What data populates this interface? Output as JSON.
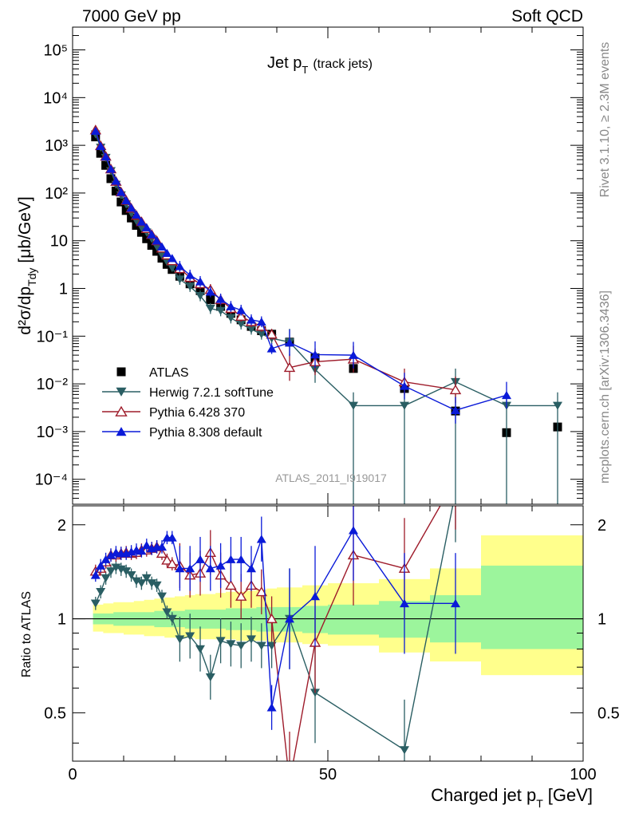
{
  "header": {
    "left": "7000 GeV pp",
    "right": "Soft QCD"
  },
  "side": {
    "rivet": "Rivet 3.1.10, ≥ 2.3M events",
    "mcplots": "mcplots.cern.ch [arXiv:1306.3436]"
  },
  "chart_data": [
    {
      "type": "scatter",
      "title_main": "Jet p",
      "title_sub": "T",
      "title_paren": "(track jets)",
      "analysis_label": "ATLAS_2011_I919017",
      "ylabel_main": "d²σ/dp",
      "ylabel_sub": "Tdy",
      "ylabel_units": "[μb/GeV]",
      "xlim": [
        0,
        100
      ],
      "ylim": [
        3e-05,
        300000
      ],
      "yscale": "log",
      "yticks": [
        "10⁻⁴",
        "10⁻³",
        "10⁻²",
        "10⁻¹",
        "1",
        "10",
        "10²",
        "10³",
        "10⁴",
        "10⁵"
      ],
      "ytick_values": [
        0.0001,
        0.001,
        0.01,
        0.1,
        1,
        10,
        100,
        1000,
        10000,
        100000
      ],
      "legend_placement": "bottom-left",
      "series": [
        {
          "name": "ATLAS",
          "color": "#000000",
          "marker": "square",
          "x": [
            4.5,
            5.5,
            6.5,
            7.5,
            8.5,
            9.5,
            10.5,
            11.5,
            12.5,
            13.5,
            14.5,
            15.5,
            16.5,
            17.5,
            18.5,
            19.5,
            21,
            23,
            25,
            27,
            29,
            31,
            33,
            35,
            37,
            39,
            42.5,
            47.5,
            55,
            65,
            75,
            85,
            95
          ],
          "y": [
            1500,
            680,
            380,
            200,
            110,
            65,
            43,
            30,
            21,
            15,
            11,
            8,
            6,
            4.3,
            3.2,
            2.5,
            1.8,
            1.25,
            0.9,
            0.58,
            0.42,
            0.3,
            0.22,
            0.16,
            0.13,
            0.11,
            0.075,
            0.035,
            0.021,
            0.008,
            0.0027,
            0.00095,
            0.00125
          ]
        },
        {
          "name": "Herwig 7.2.1 softTune",
          "color": "#2a5e63",
          "marker": "triangle-down",
          "x": [
            4.5,
            5.5,
            6.5,
            7.5,
            8.5,
            9.5,
            10.5,
            11.5,
            12.5,
            13.5,
            14.5,
            15.5,
            16.5,
            17.5,
            18.5,
            19.5,
            21,
            23,
            25,
            27,
            29,
            31,
            33,
            35,
            37,
            39,
            42.5,
            47.5,
            55,
            65,
            75,
            85,
            95
          ],
          "y": [
            1700,
            900,
            550,
            290,
            150,
            90,
            58,
            38,
            26,
            19,
            15,
            11,
            7.5,
            5,
            3.6,
            2.7,
            1.55,
            1.1,
            0.7,
            0.38,
            0.34,
            0.24,
            0.18,
            0.14,
            0.11,
            0.09,
            0.075,
            0.02,
            0.0035,
            0.0035,
            0.011,
            0.0035,
            0.0035
          ]
        },
        {
          "name": "Pythia 6.428 370",
          "color": "#9e1b2a",
          "marker": "triangle-up-open",
          "x": [
            4.5,
            5.5,
            6.5,
            7.5,
            8.5,
            9.5,
            10.5,
            11.5,
            12.5,
            13.5,
            14.5,
            15.5,
            16.5,
            17.5,
            18.5,
            19.5,
            21,
            23,
            25,
            27,
            29,
            31,
            33,
            35,
            37,
            39,
            42.5,
            47.5,
            55,
            65,
            75
          ],
          "y": [
            2100,
            980,
            590,
            320,
            175,
            105,
            70,
            48,
            34,
            25,
            18,
            13.5,
            10,
            7,
            5,
            3.8,
            2.6,
            1.7,
            1.25,
            0.95,
            0.58,
            0.38,
            0.26,
            0.2,
            0.16,
            0.11,
            0.022,
            0.029,
            0.033,
            0.011,
            0.0075
          ]
        },
        {
          "name": "Pythia 8.308 default",
          "color": "#0a1ad8",
          "marker": "triangle-up",
          "x": [
            4.5,
            5.5,
            6.5,
            7.5,
            8.5,
            9.5,
            10.5,
            11.5,
            12.5,
            13.5,
            14.5,
            15.5,
            16.5,
            17.5,
            18.5,
            19.5,
            21,
            23,
            25,
            27,
            29,
            31,
            33,
            35,
            37,
            39,
            42.5,
            47.5,
            55,
            65,
            75,
            85
          ],
          "y": [
            2000,
            960,
            580,
            320,
            180,
            105,
            70,
            49,
            35,
            25,
            19,
            13.5,
            10,
            7.5,
            5.5,
            4.3,
            2.9,
            1.9,
            1.4,
            0.85,
            0.6,
            0.42,
            0.35,
            0.22,
            0.2,
            0.055,
            0.073,
            0.041,
            0.04,
            0.009,
            0.0028,
            0.0058
          ]
        }
      ]
    },
    {
      "type": "line",
      "ylabel": "Ratio to ATLAS",
      "xlabel_main": "Charged jet p",
      "xlabel_sub": "T",
      "xlabel_units": "[GeV]",
      "xlim": [
        0,
        100
      ],
      "ylim": [
        0.35,
        2.3
      ],
      "xticks": [
        "0",
        "50",
        "100"
      ],
      "xtick_values": [
        0,
        50,
        100
      ],
      "yticks": [
        "0.5",
        "1",
        "2"
      ],
      "ytick_values": [
        0.5,
        1,
        2
      ],
      "bands": {
        "edges": [
          4,
          6,
          8,
          10,
          12,
          14,
          16,
          18,
          20,
          22,
          24,
          26,
          28,
          30,
          32,
          34,
          36,
          38,
          40,
          45,
          50,
          60,
          70,
          80,
          90,
          100
        ],
        "green_lo": [
          0.96,
          0.96,
          0.95,
          0.95,
          0.95,
          0.95,
          0.94,
          0.94,
          0.94,
          0.93,
          0.93,
          0.93,
          0.93,
          0.92,
          0.92,
          0.92,
          0.91,
          0.91,
          0.91,
          0.9,
          0.89,
          0.87,
          0.84,
          0.8,
          0.8
        ],
        "green_hi": [
          1.04,
          1.04,
          1.05,
          1.05,
          1.05,
          1.05,
          1.06,
          1.06,
          1.06,
          1.07,
          1.07,
          1.07,
          1.07,
          1.08,
          1.08,
          1.08,
          1.09,
          1.09,
          1.09,
          1.1,
          1.11,
          1.14,
          1.19,
          1.48,
          1.48
        ],
        "yellow_lo": [
          0.91,
          0.9,
          0.9,
          0.89,
          0.89,
          0.88,
          0.88,
          0.87,
          0.87,
          0.87,
          0.86,
          0.86,
          0.86,
          0.86,
          0.85,
          0.85,
          0.85,
          0.84,
          0.84,
          0.83,
          0.82,
          0.78,
          0.73,
          0.66,
          0.66
        ],
        "yellow_hi": [
          1.11,
          1.12,
          1.13,
          1.13,
          1.14,
          1.15,
          1.16,
          1.17,
          1.18,
          1.19,
          1.2,
          1.2,
          1.21,
          1.22,
          1.22,
          1.23,
          1.24,
          1.25,
          1.26,
          1.28,
          1.3,
          1.34,
          1.45,
          1.85,
          1.85
        ]
      },
      "series": [
        {
          "name": "Herwig 7.2.1 softTune",
          "color": "#2a5e63",
          "marker": "triangle-down",
          "x": [
            4.5,
            5.5,
            6.5,
            7.5,
            8.5,
            9.5,
            10.5,
            11.5,
            12.5,
            13.5,
            14.5,
            15.5,
            16.5,
            17.5,
            18.5,
            19.5,
            21,
            23,
            25,
            27,
            29,
            31,
            33,
            35,
            37,
            39,
            42.5,
            47.5,
            65,
            75
          ],
          "y": [
            1.12,
            1.22,
            1.35,
            1.42,
            1.46,
            1.44,
            1.42,
            1.38,
            1.32,
            1.3,
            1.35,
            1.3,
            1.28,
            1.18,
            1.05,
            1.0,
            0.86,
            0.88,
            0.8,
            0.65,
            0.85,
            0.83,
            0.82,
            0.86,
            0.82,
            0.82,
            1.0,
            0.58,
            0.38,
            2.55
          ]
        },
        {
          "name": "Pythia 6.428 370",
          "color": "#9e1b2a",
          "marker": "triangle-up-open",
          "x": [
            4.5,
            5.5,
            6.5,
            7.5,
            8.5,
            9.5,
            10.5,
            11.5,
            12.5,
            13.5,
            14.5,
            15.5,
            16.5,
            17.5,
            18.5,
            19.5,
            21,
            23,
            25,
            27,
            29,
            31,
            33,
            35,
            37,
            39,
            42.5,
            47.5,
            55,
            65,
            75
          ],
          "y": [
            1.42,
            1.45,
            1.52,
            1.6,
            1.6,
            1.62,
            1.63,
            1.62,
            1.63,
            1.66,
            1.66,
            1.68,
            1.7,
            1.62,
            1.54,
            1.5,
            1.48,
            1.38,
            1.4,
            1.63,
            1.38,
            1.28,
            1.18,
            1.28,
            1.22,
            1.0,
            0.3,
            0.84,
            1.6,
            1.45,
            2.8
          ]
        },
        {
          "name": "Pythia 8.308 default",
          "color": "#0a1ad8",
          "marker": "triangle-up",
          "x": [
            4.5,
            5.5,
            6.5,
            7.5,
            8.5,
            9.5,
            10.5,
            11.5,
            12.5,
            13.5,
            14.5,
            15.5,
            16.5,
            17.5,
            18.5,
            19.5,
            21,
            23,
            25,
            27,
            29,
            31,
            33,
            35,
            37,
            39,
            42.5,
            47.5,
            55,
            65,
            75
          ],
          "y": [
            1.38,
            1.48,
            1.55,
            1.6,
            1.63,
            1.62,
            1.62,
            1.64,
            1.66,
            1.65,
            1.72,
            1.68,
            1.7,
            1.7,
            1.82,
            1.82,
            1.45,
            1.45,
            1.55,
            1.45,
            1.48,
            1.55,
            1.55,
            1.45,
            1.8,
            0.52,
            1.0,
            1.18,
            1.92,
            1.12,
            1.12
          ]
        }
      ]
    }
  ]
}
